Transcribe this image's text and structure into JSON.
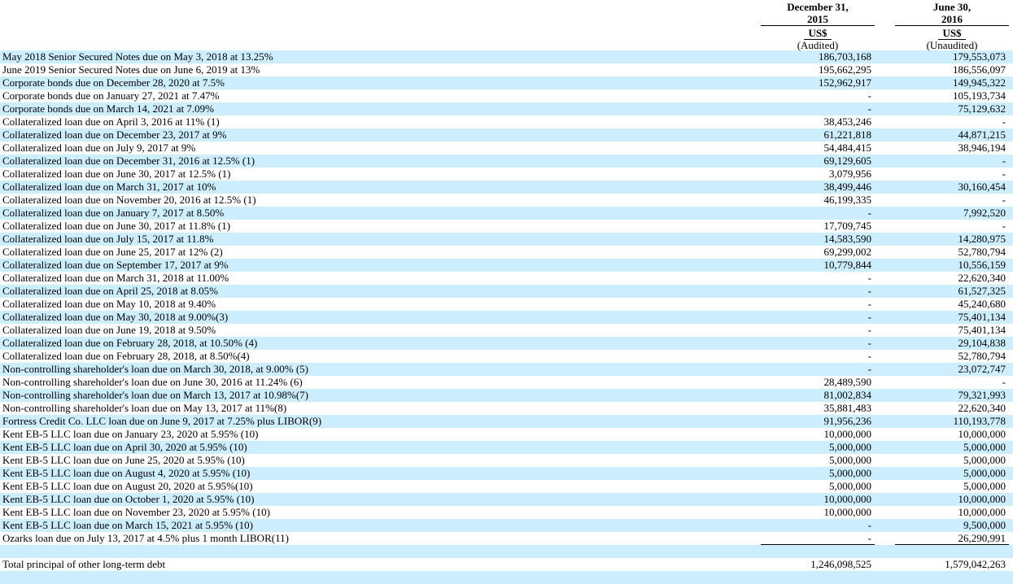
{
  "table": {
    "header": {
      "col_2015": {
        "date_line1": "December 31,",
        "date_line2": "2015",
        "currency": "US$",
        "audit_status": "(Audited)"
      },
      "col_2016": {
        "date_line1": "June 30,",
        "date_line2": "2016",
        "currency": "US$",
        "audit_status": "(Unaudited)"
      }
    },
    "colors": {
      "stripe_blue": "#cceeff",
      "text": "#000000",
      "rule": "#000000"
    },
    "rows": [
      {
        "label": "May 2018 Senior Secured Notes due on May 3, 2018 at 13.25%",
        "dec2015": "186,703,168",
        "jun2016": "179,553,073"
      },
      {
        "label": "June 2019 Senior Secured Notes due on June 6, 2019 at 13%",
        "dec2015": "195,662,295",
        "jun2016": "186,556,097"
      },
      {
        "label": "Corporate bonds due on December 28, 2020 at 7.5%",
        "dec2015": "152,962,917",
        "jun2016": "149,945,322"
      },
      {
        "label": "Corporate bonds due on January 27, 2021 at 7.47%",
        "dec2015": "-",
        "jun2016": "105,193,734"
      },
      {
        "label": "Corporate bonds due on March 14, 2021 at 7.09%",
        "dec2015": "-",
        "jun2016": "75,129,632"
      },
      {
        "label": "Collateralized loan due on April 3, 2016 at 11% (1)",
        "dec2015": "38,453,246",
        "jun2016": "-"
      },
      {
        "label": "Collateralized loan due on December 23, 2017 at 9%",
        "dec2015": "61,221,818",
        "jun2016": "44,871,215"
      },
      {
        "label": "Collateralized loan due on July 9, 2017 at 9%",
        "dec2015": "54,484,415",
        "jun2016": "38,946,194"
      },
      {
        "label": "Collateralized loan due on December 31, 2016 at 12.5% (1)",
        "dec2015": "69,129,605",
        "jun2016": "-"
      },
      {
        "label": "Collateralized loan due on June 30, 2017 at 12.5% (1)",
        "dec2015": "3,079,956",
        "jun2016": "-"
      },
      {
        "label": "Collateralized loan due on March 31, 2017 at 10%",
        "dec2015": "38,499,446",
        "jun2016": "30,160,454"
      },
      {
        "label": "Collateralized loan due on November 20, 2016 at 12.5% (1)",
        "dec2015": "46,199,335",
        "jun2016": "-"
      },
      {
        "label": "Collateralized loan due on January 7, 2017 at 8.50%",
        "dec2015": "-",
        "jun2016": "7,992,520"
      },
      {
        "label": "Collateralized loan due on June 30, 2017 at 11.8% (1)",
        "dec2015": "17,709,745",
        "jun2016": "-"
      },
      {
        "label": "Collateralized loan due on July 15, 2017 at 11.8%",
        "dec2015": "14,583,590",
        "jun2016": "14,280,975"
      },
      {
        "label": "Collateralized loan due on June 25, 2017 at 12% (2)",
        "dec2015": "69,299,002",
        "jun2016": "52,780,794"
      },
      {
        "label": "Collateralized loan due on September 17, 2017 at 9%",
        "dec2015": "10,779,844",
        "jun2016": "10,556,159"
      },
      {
        "label": "Collateralized loan due on March 31, 2018 at 11.00%",
        "dec2015": "-",
        "jun2016": "22,620,340"
      },
      {
        "label": "Collateralized loan due on April 25, 2018 at 8.05%",
        "dec2015": "-",
        "jun2016": "61,527,325"
      },
      {
        "label": "Collateralized loan due on May 10, 2018 at 9.40%",
        "dec2015": "-",
        "jun2016": "45,240,680"
      },
      {
        "label": "Collateralized loan due on May 30, 2018 at 9.00%(3)",
        "dec2015": "-",
        "jun2016": "75,401,134"
      },
      {
        "label": "Collateralized loan due on June 19, 2018 at 9.50%",
        "dec2015": "-",
        "jun2016": "75,401,134"
      },
      {
        "label": "Collateralized loan due on February 28, 2018, at 10.50% (4)",
        "dec2015": "-",
        "jun2016": "29,104,838"
      },
      {
        "label": "Collateralized loan due on February 28, 2018, at 8.50%(4)",
        "dec2015": "-",
        "jun2016": "52,780,794"
      },
      {
        "label": "Non-controlling shareholder's loan due on March 30, 2018, at 9.00% (5)",
        "dec2015": "-",
        "jun2016": "23,072,747"
      },
      {
        "label": "Non-controlling shareholder's loan due on June 30, 2016 at 11.24% (6)",
        "dec2015": "28,489,590",
        "jun2016": "-"
      },
      {
        "label": "Non-controlling shareholder's loan due on March 13, 2017 at 10.98%(7)",
        "dec2015": "81,002,834",
        "jun2016": "79,321,993"
      },
      {
        "label": "Non-controlling shareholder's loan due on May 13, 2017 at 11%(8)",
        "dec2015": "35,881,483",
        "jun2016": "22,620,340"
      },
      {
        "label": "Fortress Credit Co. LLC loan due on June 9, 2017 at 7.25% plus LIBOR(9)",
        "dec2015": "91,956,236",
        "jun2016": "110,193,778"
      },
      {
        "label": "Kent EB-5 LLC loan due on January 23, 2020 at 5.95% (10)",
        "dec2015": "10,000,000",
        "jun2016": "10,000,000"
      },
      {
        "label": "Kent EB-5 LLC loan due on April 30, 2020 at 5.95% (10)",
        "dec2015": "5,000,000",
        "jun2016": "5,000,000"
      },
      {
        "label": "Kent EB-5 LLC loan due on June 25, 2020 at 5.95% (10)",
        "dec2015": "5,000,000",
        "jun2016": "5,000,000"
      },
      {
        "label": "Kent EB-5 LLC loan due on August 4, 2020 at 5.95% (10)",
        "dec2015": "5,000,000",
        "jun2016": "5,000,000"
      },
      {
        "label": "Kent EB-5 LLC loan due on August 20, 2020 at 5.95%(10)",
        "dec2015": "5,000,000",
        "jun2016": "5,000,000"
      },
      {
        "label": "Kent EB-5 LLC loan due on October 1, 2020 at 5.95% (10)",
        "dec2015": "10,000,000",
        "jun2016": "10,000,000"
      },
      {
        "label": "Kent EB-5 LLC loan due on November 23, 2020 at 5.95% (10)",
        "dec2015": "10,000,000",
        "jun2016": "10,000,000"
      },
      {
        "label": "Kent EB-5 LLC loan due on March 15, 2021 at 5.95% (10)",
        "dec2015": "-",
        "jun2016": "9,500,000"
      },
      {
        "label": "Ozarks loan due on July 13, 2017 at 4.5% plus 1 month LIBOR(11)",
        "dec2015": "-",
        "jun2016": "26,290,991",
        "underline": true
      },
      {
        "type": "blank",
        "label": "",
        "dec2015": "",
        "jun2016": ""
      },
      {
        "type": "total",
        "label": "Total principal of other long-term debt",
        "dec2015": "1,246,098,525",
        "jun2016": "1,579,042,263"
      },
      {
        "type": "blank",
        "label": "",
        "dec2015": "",
        "jun2016": ""
      }
    ]
  }
}
